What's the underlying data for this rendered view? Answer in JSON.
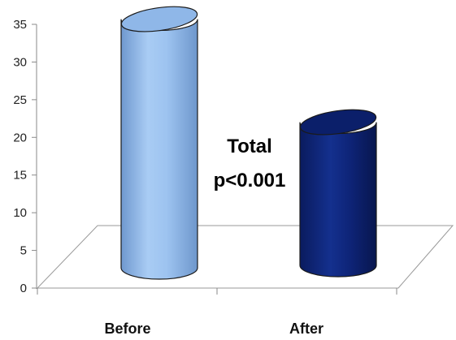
{
  "chart_data": {
    "type": "bar",
    "style": "3d-cylinder",
    "categories": [
      "Before",
      "After"
    ],
    "values": [
      33,
      19
    ],
    "colors": [
      "#9DC3F0",
      "#0E2478"
    ],
    "ylim": [
      0,
      35
    ],
    "yticks": [
      0,
      5,
      10,
      15,
      20,
      25,
      30,
      35
    ],
    "title": "",
    "xlabel": "",
    "ylabel": "",
    "grid": false,
    "annotation": {
      "line1": "Total",
      "line2": "p<0.001"
    }
  }
}
